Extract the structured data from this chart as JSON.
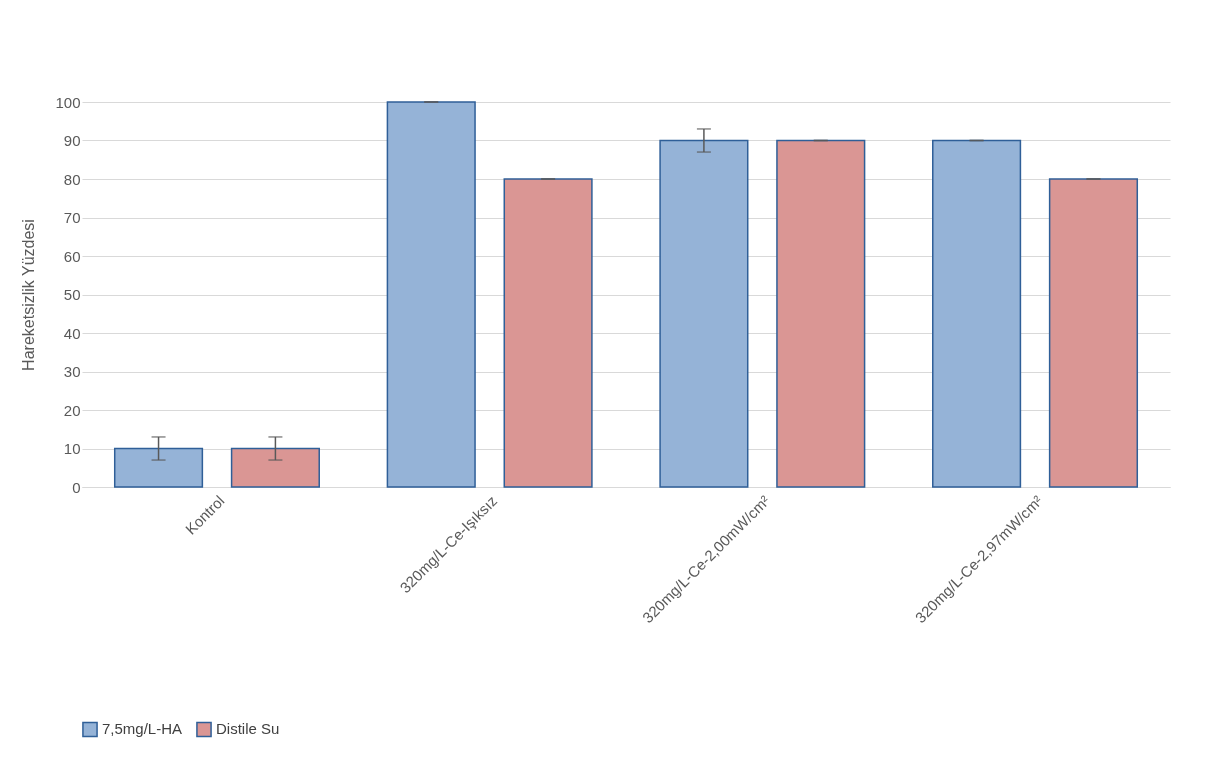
{
  "chart_data": {
    "type": "bar",
    "ylabel": "Hareketsizlik Yüzdesi",
    "categories": [
      "Kontrol",
      "320mg/L-Ce-Işıksız",
      "320mg/L-Ce-2,00mW/cm²",
      "320mg/L-Ce-2,97mW/cm²"
    ],
    "series": [
      {
        "name": "7,5mg/L-HA",
        "color": "#95b3d7",
        "values": [
          10,
          100,
          90,
          90
        ],
        "errors": [
          3,
          0,
          3,
          0
        ]
      },
      {
        "name": "Distile Su",
        "color": "#da9694",
        "values": [
          10,
          80,
          90,
          80
        ],
        "errors": [
          3,
          0,
          0,
          0
        ]
      }
    ],
    "ylim": [
      0,
      100
    ],
    "yticks": [
      0,
      10,
      20,
      30,
      40,
      50,
      60,
      70,
      80,
      90,
      100
    ],
    "grid": "y",
    "legend": "bottom"
  }
}
